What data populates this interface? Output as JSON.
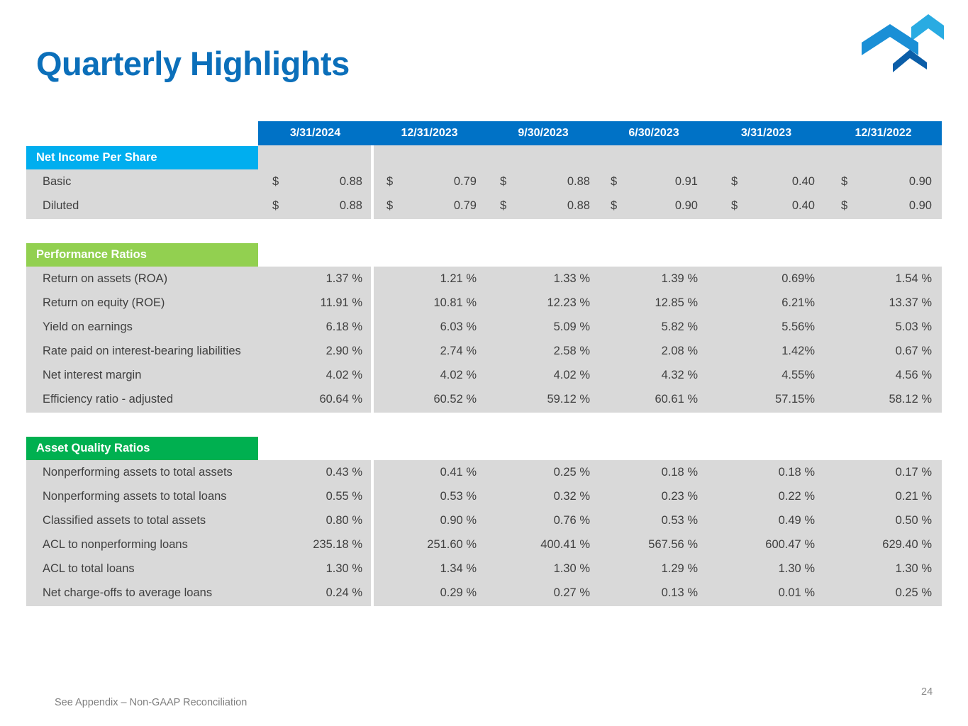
{
  "title": "Quarterly Highlights",
  "periods": [
    "3/31/2024",
    "12/31/2023",
    "9/30/2023",
    "6/30/2023",
    "3/31/2023",
    "12/31/2022"
  ],
  "sections": [
    {
      "header": "Net Income Per Share",
      "header_color": "#00aeef",
      "currency": true,
      "rows": [
        {
          "label": "Basic",
          "values": [
            "0.88",
            "0.79",
            "0.88",
            "0.91",
            "0.40",
            "0.90"
          ]
        },
        {
          "label": "Diluted",
          "values": [
            "0.88",
            "0.79",
            "0.88",
            "0.90",
            "0.40",
            "0.90"
          ]
        }
      ]
    },
    {
      "header": "Performance Ratios",
      "header_color": "#92d050",
      "currency": false,
      "rows": [
        {
          "label": "Return on assets (ROA)",
          "values": [
            "1.37 %",
            "1.21 %",
            "1.33 %",
            "1.39 %",
            "0.69%",
            "1.54 %"
          ]
        },
        {
          "label": "Return on equity (ROE)",
          "values": [
            "11.91 %",
            "10.81 %",
            "12.23 %",
            "12.85 %",
            "6.21%",
            "13.37 %"
          ]
        },
        {
          "label": "Yield on earnings",
          "values": [
            "6.18 %",
            "6.03 %",
            "5.09 %",
            "5.82 %",
            "5.56%",
            "5.03 %"
          ]
        },
        {
          "label": "Rate paid on interest-bearing liabilities",
          "values": [
            "2.90 %",
            "2.74 %",
            "2.58 %",
            "2.08 %",
            "1.42%",
            "0.67 %"
          ]
        },
        {
          "label": "Net interest margin",
          "values": [
            "4.02 %",
            "4.02 %",
            "4.02 %",
            "4.32 %",
            "4.55%",
            "4.56 %"
          ]
        },
        {
          "label": "Efficiency ratio - adjusted",
          "values": [
            "60.64 %",
            "60.52 %",
            "59.12 %",
            "60.61 %",
            "57.15%",
            "58.12 %"
          ]
        }
      ]
    },
    {
      "header": "Asset Quality Ratios",
      "header_color": "#00b050",
      "currency": false,
      "rows": [
        {
          "label": "Nonperforming assets to total assets",
          "values": [
            "0.43 %",
            "0.41 %",
            "0.25 %",
            "0.18 %",
            "0.18 %",
            "0.17 %"
          ]
        },
        {
          "label": "Nonperforming assets to total loans",
          "values": [
            "0.55 %",
            "0.53 %",
            "0.32 %",
            "0.23 %",
            "0.22 %",
            "0.21 %"
          ]
        },
        {
          "label": "Classified assets to total assets",
          "values": [
            "0.80 %",
            "0.90 %",
            "0.76 %",
            "0.53 %",
            "0.49 %",
            "0.50 %"
          ]
        },
        {
          "label": "ACL to nonperforming loans",
          "values": [
            "235.18 %",
            "251.60 %",
            "400.41 %",
            "567.56 %",
            "600.47 %",
            "629.40 %"
          ]
        },
        {
          "label": "ACL to total loans",
          "values": [
            "1.30 %",
            "1.34 %",
            "1.30 %",
            "1.29 %",
            "1.30 %",
            "1.30 %"
          ]
        },
        {
          "label": "Net charge-offs to average loans",
          "values": [
            "0.24 %",
            "0.29 %",
            "0.27 %",
            "0.13 %",
            "0.01 %",
            "0.25 %"
          ]
        }
      ]
    }
  ],
  "currency_symbol": "$",
  "footer_note": "See Appendix – Non-GAAP Reconciliation",
  "page_number": "24",
  "logo_icon": "stacked-chevrons-logo",
  "accent_color": "#0072c6"
}
